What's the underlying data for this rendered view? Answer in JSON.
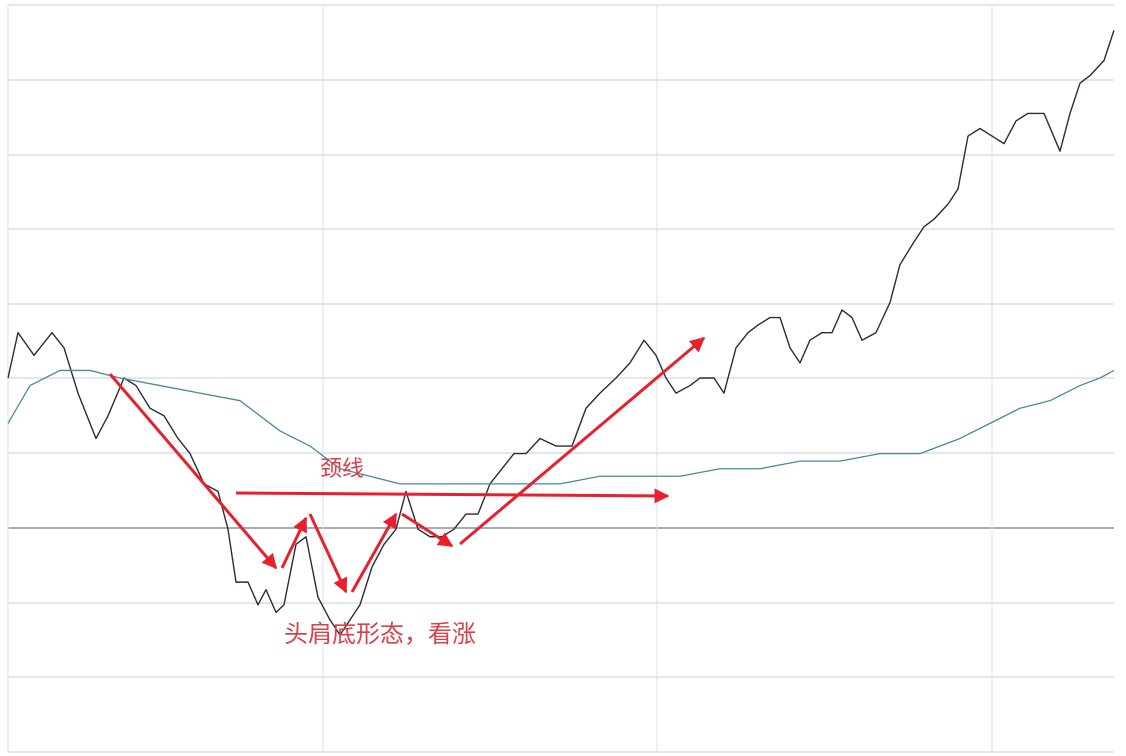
{
  "chart_data": {
    "type": "line",
    "title": "",
    "xlabel": "",
    "ylabel": "",
    "grid": true,
    "xlim": [
      0,
      1126
    ],
    "ylim": [
      0,
      10
    ],
    "series": [
      {
        "color": "#2b2b3a",
        "x": [
          8,
          18,
          34,
          52,
          64,
          78,
          96,
          108,
          124,
          136,
          150,
          164,
          178,
          190,
          204,
          218,
          228,
          236,
          248,
          258,
          266,
          276,
          284,
          296,
          306,
          318,
          330,
          340,
          350,
          360,
          372,
          384,
          396,
          406,
          418,
          430,
          442,
          454,
          466,
          478,
          490,
          502,
          514,
          526,
          540,
          556,
          572,
          586,
          600,
          616,
          630,
          644,
          656,
          666,
          676,
          690,
          700,
          714,
          724,
          736,
          748,
          758,
          770,
          780,
          790,
          800,
          810,
          822,
          832,
          842,
          852,
          862,
          876,
          890,
          900,
          914,
          924,
          934,
          948,
          958,
          968,
          980,
          992,
          1004,
          1016,
          1028,
          1044,
          1060,
          1070,
          1080,
          1090,
          1104,
          1114
        ],
        "values": [
          5.0,
          5.6,
          5.3,
          5.6,
          5.4,
          4.8,
          4.2,
          4.5,
          5.0,
          4.9,
          4.6,
          4.5,
          4.2,
          4.0,
          3.6,
          3.5,
          3.0,
          2.3,
          2.3,
          2.0,
          2.2,
          1.9,
          2.0,
          2.8,
          2.9,
          2.1,
          1.8,
          1.6,
          1.8,
          2.0,
          2.5,
          2.8,
          3.0,
          3.5,
          3.0,
          2.9,
          2.9,
          3.0,
          3.2,
          3.2,
          3.6,
          3.8,
          4.0,
          4.0,
          4.2,
          4.1,
          4.1,
          4.6,
          4.8,
          5.0,
          5.2,
          5.5,
          5.3,
          5.0,
          4.8,
          4.9,
          5.0,
          5.0,
          4.8,
          5.4,
          5.6,
          5.7,
          5.8,
          5.8,
          5.4,
          5.2,
          5.5,
          5.6,
          5.6,
          5.9,
          5.8,
          5.5,
          5.6,
          6.0,
          6.5,
          6.8,
          7.0,
          7.1,
          7.3,
          7.5,
          8.2,
          8.3,
          8.2,
          8.1,
          8.4,
          8.5,
          8.5,
          8.0,
          8.5,
          8.9,
          9.0,
          9.2,
          9.6
        ]
      },
      {
        "color": "#4a8a9a",
        "x": [
          8,
          30,
          60,
          90,
          120,
          160,
          200,
          240,
          280,
          310,
          340,
          370,
          400,
          440,
          480,
          520,
          560,
          600,
          640,
          680,
          720,
          760,
          800,
          840,
          880,
          920,
          960,
          990,
          1020,
          1050,
          1080,
          1100,
          1114
        ],
        "values": [
          4.4,
          4.9,
          5.1,
          5.1,
          5.0,
          4.9,
          4.8,
          4.7,
          4.3,
          4.1,
          3.8,
          3.7,
          3.6,
          3.6,
          3.6,
          3.6,
          3.6,
          3.7,
          3.7,
          3.7,
          3.8,
          3.8,
          3.9,
          3.9,
          4.0,
          4.0,
          4.2,
          4.4,
          4.6,
          4.7,
          4.9,
          5.0,
          5.1
        ]
      }
    ],
    "annotations": [
      {
        "text": "颈线"
      },
      {
        "text": "头肩底形态，看涨"
      }
    ],
    "colors": {
      "arrows": "#e8202e",
      "text": "#d8404a",
      "grid": "#c9cdd6"
    }
  }
}
